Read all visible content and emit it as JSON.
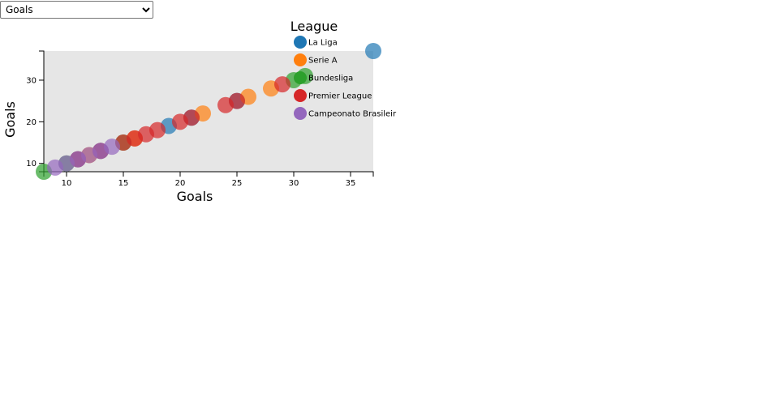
{
  "controls": {
    "metric_select": {
      "selected": "Goals",
      "options": [
        "Goals"
      ]
    }
  },
  "chart_data": {
    "type": "scatter",
    "xlabel": "Goals",
    "ylabel": "Goals",
    "xlim": [
      8,
      37
    ],
    "ylim": [
      8,
      37
    ],
    "x_ticks": [
      10,
      15,
      20,
      25,
      30,
      35
    ],
    "y_ticks": [
      10,
      20,
      30
    ],
    "grid": false,
    "legend": {
      "title": "League",
      "placement": "right",
      "entries": [
        {
          "name": "La Liga",
          "color": "#1f77b4"
        },
        {
          "name": "Serie A",
          "color": "#ff7f0e"
        },
        {
          "name": "Bundesliga",
          "color": "#2ca02c"
        },
        {
          "name": "Premier League",
          "color": "#d62728"
        },
        {
          "name": "Campeonato Brasileir",
          "color": "#9467bd"
        }
      ]
    },
    "series": [
      {
        "name": "La Liga",
        "color": "#1f77b4",
        "points": [
          {
            "x": 37,
            "y": 37
          },
          {
            "x": 19,
            "y": 19
          },
          {
            "x": 25,
            "y": 25
          },
          {
            "x": 21,
            "y": 21
          },
          {
            "x": 13,
            "y": 13
          },
          {
            "x": 11,
            "y": 11
          }
        ]
      },
      {
        "name": "Serie A",
        "color": "#ff7f0e",
        "points": [
          {
            "x": 26,
            "y": 26
          },
          {
            "x": 22,
            "y": 22
          },
          {
            "x": 28,
            "y": 28
          },
          {
            "x": 16,
            "y": 16
          },
          {
            "x": 12,
            "y": 12
          }
        ]
      },
      {
        "name": "Bundesliga",
        "color": "#2ca02c",
        "points": [
          {
            "x": 31,
            "y": 31
          },
          {
            "x": 30,
            "y": 30
          },
          {
            "x": 8,
            "y": 8
          },
          {
            "x": 10,
            "y": 10
          },
          {
            "x": 15,
            "y": 15
          }
        ]
      },
      {
        "name": "Premier League",
        "color": "#d62728",
        "points": [
          {
            "x": 29,
            "y": 29
          },
          {
            "x": 24,
            "y": 24
          },
          {
            "x": 21,
            "y": 21
          },
          {
            "x": 20,
            "y": 20
          },
          {
            "x": 18,
            "y": 18
          },
          {
            "x": 17,
            "y": 17
          },
          {
            "x": 16,
            "y": 16
          },
          {
            "x": 15,
            "y": 15
          },
          {
            "x": 13,
            "y": 13
          },
          {
            "x": 11,
            "y": 11
          },
          {
            "x": 25,
            "y": 25
          }
        ]
      },
      {
        "name": "Campeonato Brasileir",
        "color": "#9467bd",
        "points": [
          {
            "x": 14,
            "y": 14
          },
          {
            "x": 12,
            "y": 12
          },
          {
            "x": 10,
            "y": 10
          },
          {
            "x": 9,
            "y": 9
          },
          {
            "x": 13,
            "y": 13
          },
          {
            "x": 11,
            "y": 11
          }
        ]
      }
    ]
  }
}
